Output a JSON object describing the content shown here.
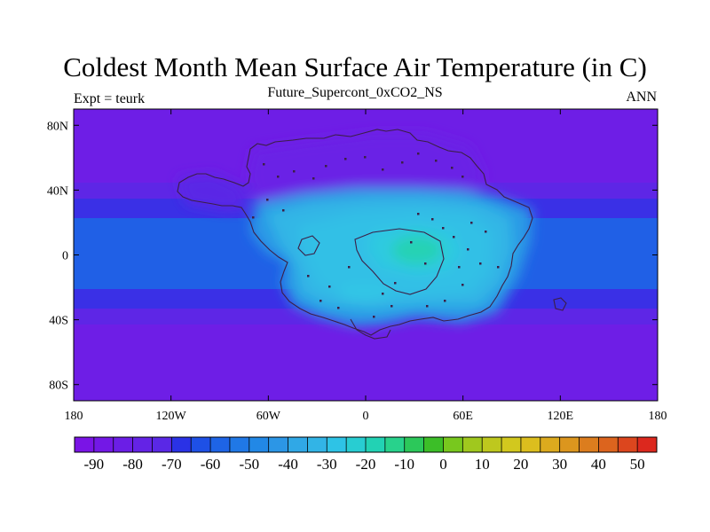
{
  "title": "Coldest Month Mean Surface Air Temperature (in C)",
  "subtitle": "Future_Supercont_0xCO2_NS",
  "left_label": "Expt = teurk",
  "right_label": "ANN",
  "map": {
    "lon_ticks": [
      "180",
      "120W",
      "60W",
      "0",
      "60E",
      "120E",
      "180"
    ],
    "lat_ticks": [
      "80N",
      "40N",
      "0",
      "40S",
      "80S"
    ],
    "lon_range": [
      -180,
      180
    ],
    "lat_range": [
      -90,
      90
    ],
    "lat_tick_values": [
      80,
      40,
      0,
      -40,
      -80
    ],
    "ocean_color": "#6e1ee6",
    "land_outline_color": "#3c1e46"
  },
  "colorbar": {
    "labels": [
      "-90",
      "-80",
      "-70",
      "-60",
      "-50",
      "-40",
      "-30",
      "-20",
      "-10",
      "0",
      "10",
      "20",
      "30",
      "40",
      "50"
    ],
    "label_values": [
      -90,
      -80,
      -70,
      -60,
      -50,
      -40,
      -30,
      -20,
      -10,
      0,
      10,
      20,
      30,
      40,
      50
    ],
    "min": -95,
    "max": 55,
    "colors": [
      "#7a14e6",
      "#7318e6",
      "#6b1ee6",
      "#6423e6",
      "#5a28e6",
      "#2a32e6",
      "#1e50e6",
      "#1e64e6",
      "#2078e6",
      "#2288e6",
      "#2c96e6",
      "#30a8e6",
      "#32b4e6",
      "#2ec3e6",
      "#28cdd2",
      "#22d2b4",
      "#28d28c",
      "#2cc85a",
      "#3cbe28",
      "#78c81e",
      "#a0c81e",
      "#bec81e",
      "#d2c81e",
      "#dcbe1e",
      "#dcaa1e",
      "#dc961e",
      "#dc7d1e",
      "#dc641e",
      "#dc461e",
      "#dc281e"
    ]
  }
}
